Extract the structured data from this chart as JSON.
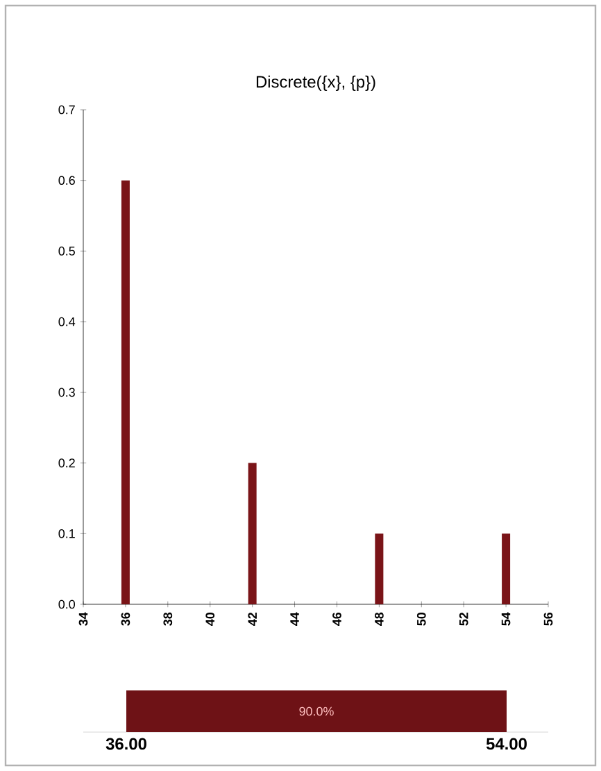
{
  "chart_data": {
    "type": "bar",
    "title": "Discrete({x}, {p})",
    "x": [
      36,
      42,
      48,
      54
    ],
    "values": [
      0.6,
      0.2,
      0.1,
      0.1
    ],
    "color": "#7a1418",
    "xlim": [
      34,
      56
    ],
    "xticks": [
      34,
      36,
      38,
      40,
      42,
      44,
      46,
      48,
      50,
      52,
      54,
      56
    ],
    "ylim": [
      0,
      0.7
    ],
    "yticks": [
      {
        "value": 0,
        "label": "0.0"
      },
      0.1,
      0.2,
      0.3,
      0.4,
      0.5,
      0.6,
      0.7
    ],
    "annotations": [
      "90.0%",
      "36.00",
      "54.00"
    ]
  }
}
